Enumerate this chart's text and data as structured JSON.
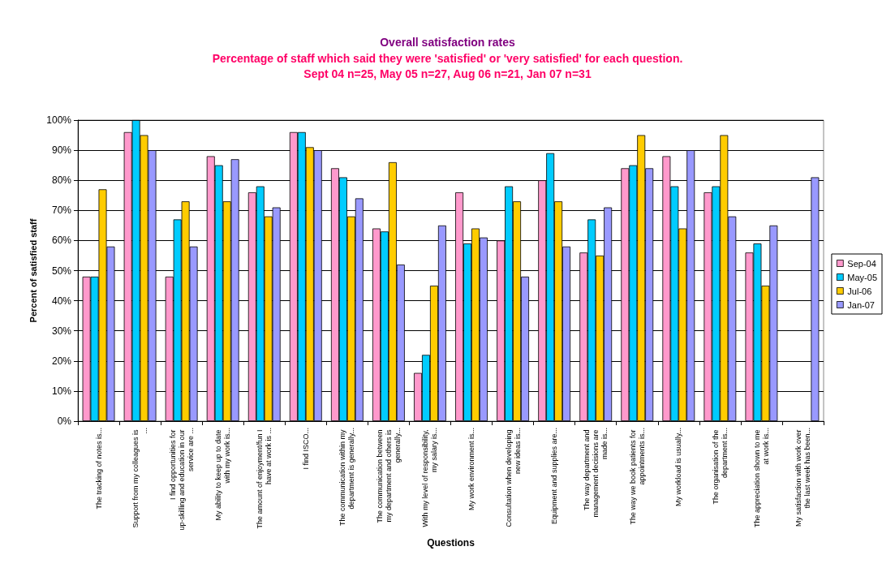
{
  "chart_data": {
    "type": "bar",
    "title": "Overall satisfaction rates",
    "subtitle": "Percentage of staff which said they were 'satisfied' or 'very satisfied' for each question.\nSept 04 n=25, May 05 n=27, Aug 06 n=21, Jan 07 n=31",
    "xlabel": "Questions",
    "ylabel": "Percent of satisfied staff",
    "categories": [
      "The tracking of notes is...",
      "Support from my colleagues is ...",
      "I find opportunities for up-skilling and education in our service are ...",
      "My ability to keep up to date with my work is...",
      "The amount of enjoyment/fun I have at work is ...",
      "I find ISCO...",
      "The communication within my department is generally...",
      "The communication between my department and others is generally...",
      "With my level of responsibility, my salary is...",
      "My work environment is...",
      "Consultation when developing new ideas is...",
      "Equipment and supplies are...",
      "The way department and management decisions are made is...",
      "The way we book patients for appointments is...",
      "My workload is usually...",
      "The organisation of the department is...",
      "The appreciation shown to me at work is...",
      "My satisfaction with work over the last week has been..."
    ],
    "series": [
      {
        "name": "Sep-04",
        "color": "#ff99cc",
        "values": [
          48,
          96,
          48,
          88,
          76,
          96,
          84,
          64,
          16,
          76,
          60,
          80,
          56,
          84,
          88,
          76,
          56,
          null
        ]
      },
      {
        "name": "May-05",
        "color": "#00ccff",
        "values": [
          48,
          100,
          67,
          85,
          78,
          96,
          81,
          63,
          22,
          59,
          78,
          89,
          67,
          85,
          78,
          78,
          59,
          null
        ]
      },
      {
        "name": "Jul-06",
        "color": "#ffcc00",
        "values": [
          77,
          95,
          73,
          73,
          68,
          91,
          68,
          86,
          45,
          64,
          73,
          73,
          55,
          95,
          64,
          95,
          45,
          null
        ]
      },
      {
        "name": "Jan-07",
        "color": "#9999ff",
        "values": [
          58,
          90,
          58,
          87,
          71,
          90,
          74,
          52,
          65,
          61,
          48,
          58,
          71,
          84,
          90,
          68,
          65,
          81
        ]
      }
    ],
    "ylim": [
      0,
      100
    ],
    "yticks": [
      {
        "value": 0,
        "label": "0%"
      },
      {
        "value": 10,
        "label": "10%"
      },
      {
        "value": 20,
        "label": "20%"
      },
      {
        "value": 30,
        "label": "30%"
      },
      {
        "value": 40,
        "label": "40%"
      },
      {
        "value": 50,
        "label": "50%"
      },
      {
        "value": 60,
        "label": "60%"
      },
      {
        "value": 70,
        "label": "70%"
      },
      {
        "value": 80,
        "label": "80%"
      },
      {
        "value": 90,
        "label": "90%"
      },
      {
        "value": 100,
        "label": "100%"
      }
    ],
    "grid": "y",
    "legend": "right"
  }
}
